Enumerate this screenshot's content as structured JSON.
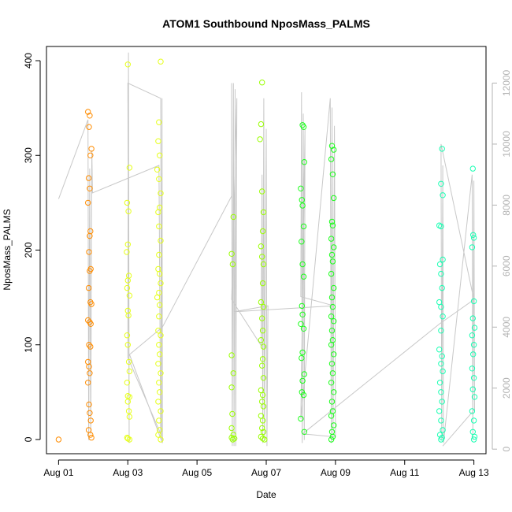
{
  "chart_data": {
    "type": "scatter",
    "title": "ATOM1 Southbound NposMass_PALMS",
    "xlabel": "Date",
    "ylabel": "NposMass_PALMS",
    "x_ticks": [
      {
        "day": 1,
        "label": "Aug 01"
      },
      {
        "day": 3,
        "label": "Aug 03"
      },
      {
        "day": 5,
        "label": "Aug 05"
      },
      {
        "day": 7,
        "label": "Aug 07"
      },
      {
        "day": 9,
        "label": "Aug 09"
      },
      {
        "day": 11,
        "label": "Aug 11"
      },
      {
        "day": 13,
        "label": "Aug 13"
      }
    ],
    "xlim": [
      0.65,
      13.35
    ],
    "ylim": [
      -15,
      415
    ],
    "y_ticks": [
      0,
      100,
      200,
      300,
      400
    ],
    "y2lim": [
      -150,
      13200
    ],
    "y2_ticks": [
      0,
      2000,
      4000,
      6000,
      8000,
      10000,
      12000
    ],
    "y2_color": "#b3b3b3",
    "line_color": "#c8c8c8",
    "series": [
      {
        "color": "#ff8c00",
        "points": [
          [
            1.0,
            0
          ],
          [
            1.85,
            346
          ],
          [
            1.9,
            342
          ],
          [
            1.88,
            330
          ],
          [
            1.95,
            307
          ],
          [
            1.92,
            300
          ],
          [
            1.87,
            276
          ],
          [
            1.9,
            265
          ],
          [
            1.85,
            250
          ],
          [
            1.92,
            220
          ],
          [
            1.9,
            215
          ],
          [
            1.88,
            198
          ],
          [
            1.93,
            180
          ],
          [
            1.9,
            178
          ],
          [
            1.87,
            160
          ],
          [
            1.92,
            145
          ],
          [
            1.95,
            143
          ],
          [
            1.85,
            126
          ],
          [
            1.9,
            124
          ],
          [
            1.93,
            122
          ],
          [
            1.88,
            100
          ],
          [
            1.92,
            98
          ],
          [
            1.85,
            82
          ],
          [
            1.88,
            77
          ],
          [
            1.9,
            70
          ],
          [
            1.85,
            60
          ],
          [
            1.88,
            37
          ],
          [
            1.9,
            28
          ],
          [
            1.87,
            10
          ],
          [
            1.92,
            5
          ],
          [
            1.95,
            2
          ],
          [
            1.93,
            20
          ]
        ]
      },
      {
        "color": "#e6ff1a",
        "points": [
          [
            3.0,
            396
          ],
          [
            3.05,
            287
          ],
          [
            2.98,
            250
          ],
          [
            3.02,
            241
          ],
          [
            3.0,
            206
          ],
          [
            2.97,
            198
          ],
          [
            3.03,
            173
          ],
          [
            3.0,
            168
          ],
          [
            2.98,
            160
          ],
          [
            3.05,
            152
          ],
          [
            3.0,
            136
          ],
          [
            3.02,
            131
          ],
          [
            2.98,
            110
          ],
          [
            3.0,
            100
          ],
          [
            3.03,
            82
          ],
          [
            3.05,
            72
          ],
          [
            2.98,
            60
          ],
          [
            3.0,
            46
          ],
          [
            3.05,
            45
          ],
          [
            3.0,
            40
          ],
          [
            3.03,
            30
          ],
          [
            3.05,
            24
          ],
          [
            2.98,
            2
          ],
          [
            3.0,
            1
          ],
          [
            3.05,
            0
          ],
          [
            3.95,
            399
          ],
          [
            3.9,
            335
          ],
          [
            3.88,
            315
          ],
          [
            3.92,
            300
          ],
          [
            3.85,
            285
          ],
          [
            3.9,
            275
          ],
          [
            3.95,
            260
          ],
          [
            3.92,
            245
          ],
          [
            3.88,
            240
          ],
          [
            3.9,
            225
          ],
          [
            3.95,
            210
          ],
          [
            3.9,
            195
          ],
          [
            3.88,
            180
          ],
          [
            3.92,
            175
          ],
          [
            3.95,
            165
          ],
          [
            3.9,
            155
          ],
          [
            3.85,
            150
          ],
          [
            3.92,
            142
          ],
          [
            3.9,
            130
          ],
          [
            3.88,
            115
          ],
          [
            3.95,
            110
          ],
          [
            3.9,
            100
          ],
          [
            3.92,
            90
          ],
          [
            3.88,
            80
          ],
          [
            3.95,
            70
          ],
          [
            3.9,
            60
          ],
          [
            3.92,
            50
          ],
          [
            3.88,
            40
          ],
          [
            3.95,
            30
          ],
          [
            3.9,
            20
          ],
          [
            3.92,
            10
          ],
          [
            3.88,
            5
          ],
          [
            3.95,
            0
          ]
        ]
      },
      {
        "color": "#99ff00",
        "points": [
          [
            6.05,
            235
          ],
          [
            6.0,
            196
          ],
          [
            6.03,
            185
          ],
          [
            6.0,
            89
          ],
          [
            6.05,
            70
          ],
          [
            6.0,
            55
          ],
          [
            6.02,
            27
          ],
          [
            6.0,
            12
          ],
          [
            6.05,
            5
          ],
          [
            6.0,
            2
          ],
          [
            6.03,
            0
          ],
          [
            6.08,
            1
          ],
          [
            6.88,
            377
          ],
          [
            6.85,
            333
          ],
          [
            6.82,
            317
          ],
          [
            6.88,
            262
          ],
          [
            6.92,
            240
          ],
          [
            6.9,
            220
          ],
          [
            6.85,
            204
          ],
          [
            6.88,
            193
          ],
          [
            6.92,
            185
          ],
          [
            6.9,
            165
          ],
          [
            6.85,
            145
          ],
          [
            6.92,
            140
          ],
          [
            6.88,
            128
          ],
          [
            6.9,
            115
          ],
          [
            6.85,
            105
          ],
          [
            6.92,
            98
          ],
          [
            6.9,
            85
          ],
          [
            6.88,
            78
          ],
          [
            6.92,
            65
          ],
          [
            6.85,
            52
          ],
          [
            6.9,
            47
          ],
          [
            6.88,
            40
          ],
          [
            6.92,
            35
          ],
          [
            6.85,
            25
          ],
          [
            6.9,
            20
          ],
          [
            6.88,
            12
          ],
          [
            6.92,
            8
          ],
          [
            6.85,
            3
          ],
          [
            6.9,
            1
          ],
          [
            6.95,
            0
          ]
        ]
      },
      {
        "color": "#1aff1a",
        "points": [
          [
            8.05,
            332
          ],
          [
            8.08,
            330
          ],
          [
            8.1,
            293
          ],
          [
            8.0,
            265
          ],
          [
            8.03,
            253
          ],
          [
            8.05,
            247
          ],
          [
            8.08,
            225
          ],
          [
            8.02,
            209
          ],
          [
            8.05,
            185
          ],
          [
            8.08,
            172
          ],
          [
            8.03,
            141
          ],
          [
            8.05,
            132
          ],
          [
            8.0,
            122
          ],
          [
            8.08,
            117
          ],
          [
            8.05,
            92
          ],
          [
            8.02,
            86
          ],
          [
            8.1,
            69
          ],
          [
            8.05,
            62
          ],
          [
            8.03,
            50
          ],
          [
            8.08,
            47
          ],
          [
            8.0,
            22
          ],
          [
            8.1,
            8
          ],
          [
            8.9,
            310
          ],
          [
            8.95,
            306
          ],
          [
            8.88,
            296
          ],
          [
            8.92,
            280
          ],
          [
            8.95,
            255
          ],
          [
            8.9,
            230
          ],
          [
            8.92,
            226
          ],
          [
            8.88,
            212
          ],
          [
            8.95,
            203
          ],
          [
            8.9,
            195
          ],
          [
            8.92,
            188
          ],
          [
            8.88,
            175
          ],
          [
            8.95,
            160
          ],
          [
            8.9,
            150
          ],
          [
            8.92,
            140
          ],
          [
            8.88,
            130
          ],
          [
            8.95,
            125
          ],
          [
            8.9,
            115
          ],
          [
            8.92,
            105
          ],
          [
            8.88,
            100
          ],
          [
            8.95,
            90
          ],
          [
            8.9,
            80
          ],
          [
            8.92,
            70
          ],
          [
            8.88,
            60
          ],
          [
            8.95,
            50
          ],
          [
            8.9,
            40
          ],
          [
            8.92,
            30
          ],
          [
            8.88,
            25
          ],
          [
            8.95,
            15
          ],
          [
            8.9,
            8
          ],
          [
            8.92,
            3
          ],
          [
            8.88,
            0
          ]
        ]
      },
      {
        "color": "#1affb3",
        "points": [
          [
            12.08,
            307
          ],
          [
            12.05,
            270
          ],
          [
            12.1,
            258
          ],
          [
            12.0,
            226
          ],
          [
            12.05,
            225
          ],
          [
            12.1,
            190
          ],
          [
            12.02,
            185
          ],
          [
            12.05,
            175
          ],
          [
            12.08,
            160
          ],
          [
            12.0,
            145
          ],
          [
            12.05,
            140
          ],
          [
            12.1,
            130
          ],
          [
            12.05,
            115
          ],
          [
            12.0,
            95
          ],
          [
            12.08,
            88
          ],
          [
            12.05,
            80
          ],
          [
            12.1,
            72
          ],
          [
            12.02,
            60
          ],
          [
            12.05,
            50
          ],
          [
            12.08,
            40
          ],
          [
            12.0,
            30
          ],
          [
            12.05,
            20
          ],
          [
            12.1,
            10
          ],
          [
            12.02,
            5
          ],
          [
            12.05,
            0
          ],
          [
            12.08,
            2
          ],
          [
            12.97,
            286
          ],
          [
            12.98,
            216
          ],
          [
            13.0,
            213
          ],
          [
            12.95,
            203
          ],
          [
            13.0,
            146
          ],
          [
            12.97,
            128
          ],
          [
            13.02,
            118
          ],
          [
            12.95,
            110
          ],
          [
            13.0,
            100
          ],
          [
            12.98,
            90
          ],
          [
            12.95,
            75
          ],
          [
            13.0,
            65
          ],
          [
            12.97,
            53
          ],
          [
            13.02,
            45
          ],
          [
            12.95,
            30
          ],
          [
            13.0,
            20
          ],
          [
            12.97,
            8
          ],
          [
            13.02,
            3
          ],
          [
            13.0,
            0
          ]
        ]
      }
    ],
    "secondary_line": [
      [
        1.0,
        8200
      ],
      [
        1.85,
        10800
      ],
      [
        1.87,
        300
      ],
      [
        1.9,
        9200
      ],
      [
        1.93,
        500
      ],
      [
        1.96,
        9800
      ],
      [
        1.98,
        8400
      ],
      [
        3.9,
        9300
      ],
      [
        3.95,
        500
      ],
      [
        3.0,
        3000
      ],
      [
        3.02,
        13000
      ],
      [
        3.04,
        200
      ],
      [
        3.0,
        12000
      ],
      [
        3.95,
        11500
      ],
      [
        3.97,
        300
      ],
      [
        3.99,
        11500
      ],
      [
        4.0,
        200
      ],
      [
        3.05,
        3100
      ],
      [
        4.0,
        4000
      ],
      [
        6.0,
        8300
      ],
      [
        6.0,
        12000
      ],
      [
        6.02,
        100
      ],
      [
        6.05,
        12000
      ],
      [
        6.07,
        100
      ],
      [
        6.1,
        11800
      ],
      [
        6.12,
        100
      ],
      [
        6.15,
        11500
      ],
      [
        6.0,
        4900
      ],
      [
        6.85,
        3400
      ],
      [
        6.88,
        9000
      ],
      [
        6.9,
        200
      ],
      [
        6.93,
        11500
      ],
      [
        6.95,
        300
      ],
      [
        7.0,
        10500
      ],
      [
        7.02,
        100
      ],
      [
        7.05,
        4700
      ],
      [
        6.05,
        4500
      ],
      [
        8.95,
        4700
      ],
      [
        8.0,
        5000
      ],
      [
        8.02,
        11700
      ],
      [
        8.04,
        200
      ],
      [
        8.07,
        11000
      ],
      [
        8.1,
        300
      ],
      [
        8.12,
        10500
      ],
      [
        8.0,
        1000
      ],
      [
        8.85,
        11500
      ],
      [
        8.88,
        200
      ],
      [
        8.9,
        11200
      ],
      [
        8.93,
        300
      ],
      [
        8.97,
        10600
      ],
      [
        9.0,
        400
      ],
      [
        8.05,
        500
      ],
      [
        12.0,
        4100
      ],
      [
        13.0,
        4900
      ],
      [
        12.05,
        10000
      ],
      [
        12.07,
        300
      ],
      [
        12.1,
        9300
      ],
      [
        12.12,
        200
      ],
      [
        12.95,
        9000
      ],
      [
        12.97,
        300
      ],
      [
        13.0,
        8800
      ],
      [
        13.02,
        1300
      ],
      [
        12.1,
        100
      ]
    ]
  }
}
